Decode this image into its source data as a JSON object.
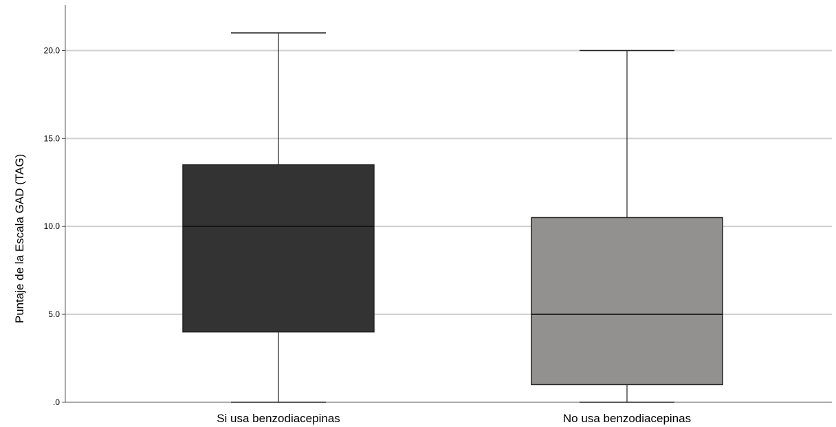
{
  "chart_data": {
    "type": "boxplot",
    "ylabel": "Puntaje de la Escala GAD (TAG)",
    "xlabel": "",
    "ylim": [
      0,
      22.6
    ],
    "yticks": [
      0,
      5,
      10,
      15,
      20
    ],
    "ytick_labels": [
      ".0",
      "5.0",
      "10.0",
      "15.0",
      "20.0"
    ],
    "grid": "horizontal",
    "categories": [
      "Si usa benzodiacepinas",
      "No usa benzodiacepinas"
    ],
    "boxes": [
      {
        "category": "Si usa benzodiacepinas",
        "min": 0,
        "q1": 4,
        "median": 10,
        "q3": 13.5,
        "max": 21,
        "color": "#333333"
      },
      {
        "category": "No usa benzodiacepinas",
        "min": 0,
        "q1": 1,
        "median": 5,
        "q3": 10.5,
        "max": 20,
        "color": "#939090"
      }
    ]
  },
  "colors": {
    "grid": "#d0d0d0",
    "axis": "#555555",
    "stroke": "#222222"
  }
}
